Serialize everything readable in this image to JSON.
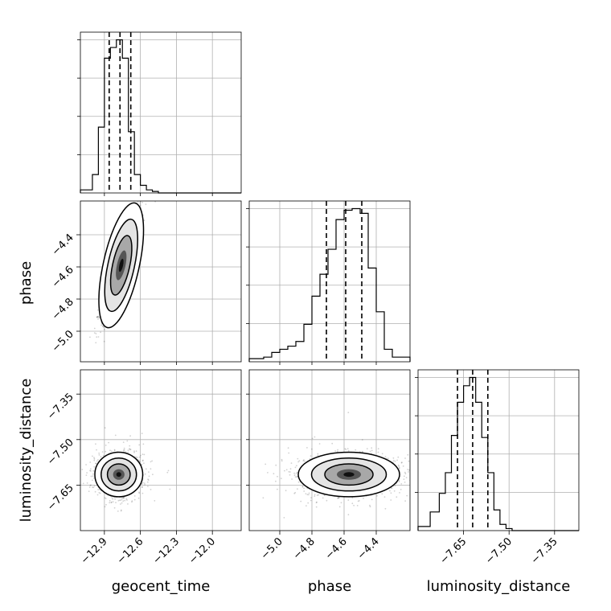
{
  "chart_data": {
    "type": "corner",
    "parameters": [
      "geocent_time",
      "phase",
      "luminosity_distance"
    ],
    "axes": {
      "geocent_time": {
        "range": [
          -13.1,
          -11.76
        ],
        "ticks": [
          -12.9,
          -12.6,
          -12.3,
          -12.0
        ],
        "tick_labels": [
          "−12.9",
          "−12.6",
          "−12.3",
          "−12.0"
        ]
      },
      "phase": {
        "range": [
          -5.19,
          -4.19
        ],
        "ticks": [
          -5.0,
          -4.8,
          -4.6,
          -4.4
        ],
        "tick_labels": [
          "−5.0",
          "−4.8",
          "−4.6",
          "−4.4"
        ]
      },
      "luminosity_distance": {
        "range": [
          -7.8,
          -7.27
        ],
        "ticks": [
          -7.65,
          -7.5,
          -7.35
        ],
        "tick_labels": [
          "−7.65",
          "−7.50",
          "−7.35"
        ]
      }
    },
    "histograms": {
      "geocent_time": {
        "edges": [
          -13.1,
          -13.0,
          -12.95,
          -12.9,
          -12.85,
          -12.8,
          -12.75,
          -12.7,
          -12.65,
          -12.6,
          -12.55,
          -12.5,
          -12.45,
          -12.4,
          -12.35,
          -12.3,
          -11.76
        ],
        "counts": [
          2,
          12,
          43,
          88,
          95,
          100,
          88,
          40,
          12,
          5,
          2,
          1,
          0,
          0,
          0,
          0
        ],
        "quantiles": [
          -12.86,
          -12.77,
          -12.68
        ]
      },
      "phase": {
        "edges": [
          -5.19,
          -5.1,
          -5.05,
          -5.0,
          -4.95,
          -4.9,
          -4.85,
          -4.8,
          -4.75,
          -4.7,
          -4.65,
          -4.6,
          -4.55,
          -4.5,
          -4.45,
          -4.4,
          -4.35,
          -4.3,
          -4.19
        ],
        "counts": [
          2,
          3,
          6,
          8,
          10,
          13,
          24,
          42,
          56,
          72,
          91,
          97,
          98,
          95,
          60,
          32,
          8,
          3
        ],
        "quantiles": [
          -4.71,
          -4.59,
          -4.49
        ]
      },
      "luminosity_distance": {
        "edges": [
          -7.8,
          -7.76,
          -7.73,
          -7.71,
          -7.69,
          -7.67,
          -7.65,
          -7.63,
          -7.61,
          -7.59,
          -7.57,
          -7.55,
          -7.53,
          -7.51,
          -7.49,
          -7.27
        ],
        "counts": [
          2,
          9,
          18,
          28,
          46,
          62,
          70,
          74,
          62,
          45,
          28,
          10,
          3,
          1,
          0
        ],
        "quantiles": [
          -7.67,
          -7.62,
          -7.57
        ]
      }
    },
    "joint": [
      {
        "x": "geocent_time",
        "y": "phase",
        "center": [
          -12.76,
          -4.59
        ],
        "spread": [
          0.095,
          0.14
        ],
        "tilt": 55,
        "points": 1500,
        "range_x": [
          -13.1,
          -11.76
        ],
        "range_y": [
          -5.19,
          -4.19
        ]
      },
      {
        "x": "geocent_time",
        "y": "luminosity_distance",
        "center": [
          -12.78,
          -7.615
        ],
        "spread": [
          0.095,
          0.035
        ],
        "tilt": 0,
        "points": 1300,
        "range_x": [
          -13.1,
          -11.76
        ],
        "range_y": [
          -7.8,
          -7.27
        ]
      },
      {
        "x": "phase",
        "y": "luminosity_distance",
        "center": [
          -4.57,
          -7.615
        ],
        "spread": [
          0.15,
          0.035
        ],
        "tilt": 0,
        "points": 1500,
        "range_x": [
          -5.19,
          -4.19
        ],
        "range_y": [
          -7.8,
          -7.27
        ]
      }
    ],
    "grid": true
  }
}
